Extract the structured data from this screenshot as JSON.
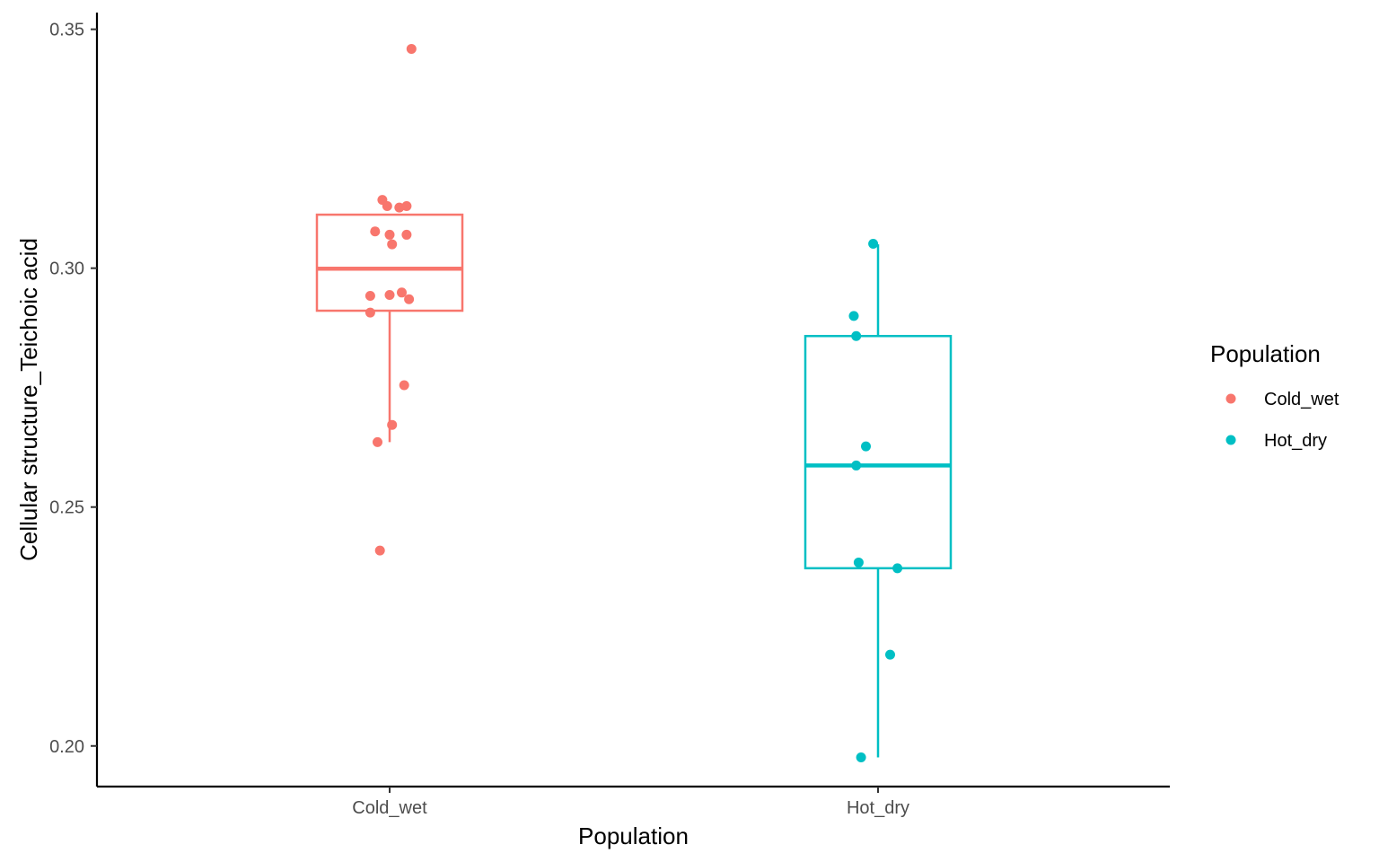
{
  "chart_data": {
    "type": "boxplot",
    "xlabel": "Population",
    "ylabel": "Cellular structure_Teichoic acid",
    "categories": [
      "Cold_wet",
      "Hot_dry"
    ],
    "ylim": [
      0.1915,
      0.3535
    ],
    "yticks": [
      0.2,
      0.25,
      0.3,
      0.35
    ],
    "ytick_labels": [
      "0.20",
      "0.25",
      "0.30",
      "0.35"
    ],
    "grid": false,
    "legend": {
      "title": "Population",
      "position": "right",
      "entries": [
        "Cold_wet",
        "Hot_dry"
      ]
    },
    "series": [
      {
        "name": "Cold_wet",
        "color": "#F8766D",
        "box": {
          "lower_whisker": 0.2636,
          "q1": 0.2911,
          "median": 0.2999,
          "q3": 0.3112,
          "upper_whisker": 0.3112
        },
        "points": [
          {
            "x_jitter": 0.09,
            "y": 0.3459
          },
          {
            "x_jitter": -0.03,
            "y": 0.3143
          },
          {
            "x_jitter": -0.01,
            "y": 0.313
          },
          {
            "x_jitter": 0.04,
            "y": 0.3127
          },
          {
            "x_jitter": 0.07,
            "y": 0.313
          },
          {
            "x_jitter": -0.06,
            "y": 0.3077
          },
          {
            "x_jitter": 0.0,
            "y": 0.307
          },
          {
            "x_jitter": 0.07,
            "y": 0.307
          },
          {
            "x_jitter": 0.01,
            "y": 0.305
          },
          {
            "x_jitter": -0.08,
            "y": 0.2942
          },
          {
            "x_jitter": 0.0,
            "y": 0.2944
          },
          {
            "x_jitter": 0.05,
            "y": 0.2949
          },
          {
            "x_jitter": 0.08,
            "y": 0.2935
          },
          {
            "x_jitter": -0.08,
            "y": 0.2907
          },
          {
            "x_jitter": 0.06,
            "y": 0.2755
          },
          {
            "x_jitter": 0.01,
            "y": 0.2672
          },
          {
            "x_jitter": -0.05,
            "y": 0.2636
          },
          {
            "x_jitter": -0.04,
            "y": 0.2409
          }
        ]
      },
      {
        "name": "Hot_dry",
        "color": "#00BFC4",
        "box": {
          "lower_whisker": 0.1976,
          "q1": 0.2372,
          "median": 0.2587,
          "q3": 0.2858,
          "upper_whisker": 0.305
        },
        "points": [
          {
            "x_jitter": -0.02,
            "y": 0.3051
          },
          {
            "x_jitter": -0.1,
            "y": 0.29
          },
          {
            "x_jitter": -0.09,
            "y": 0.2858
          },
          {
            "x_jitter": -0.05,
            "y": 0.2627
          },
          {
            "x_jitter": -0.09,
            "y": 0.2587
          },
          {
            "x_jitter": -0.08,
            "y": 0.2384
          },
          {
            "x_jitter": 0.08,
            "y": 0.2372
          },
          {
            "x_jitter": 0.05,
            "y": 0.2191
          },
          {
            "x_jitter": -0.07,
            "y": 0.1976
          }
        ]
      }
    ]
  }
}
